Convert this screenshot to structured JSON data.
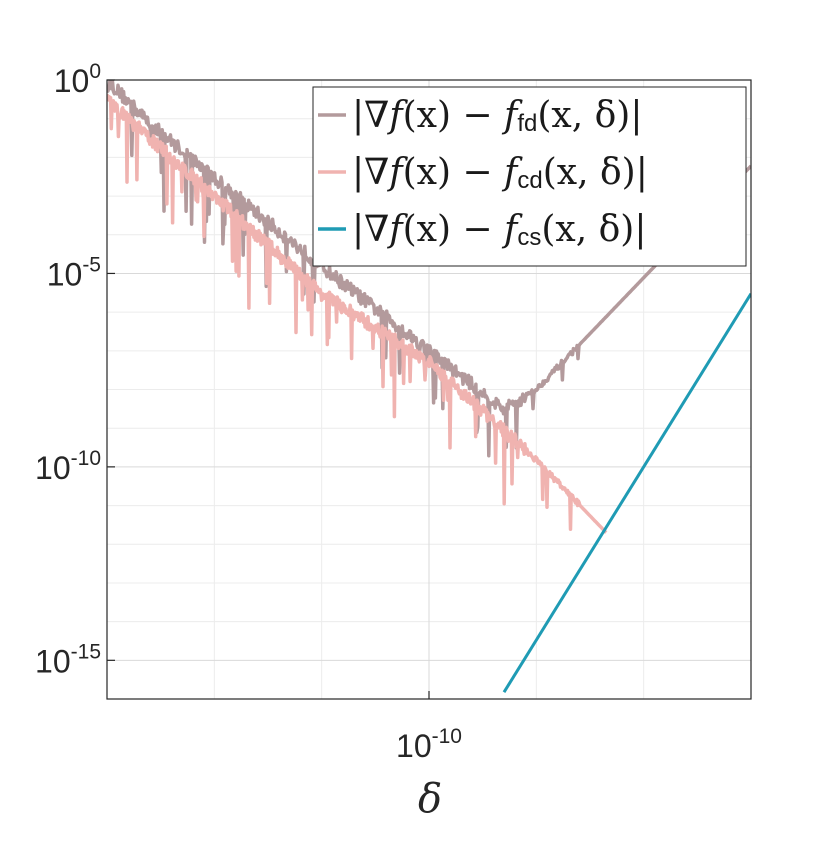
{
  "chart_data": {
    "type": "line",
    "xscale": "log",
    "yscale": "log",
    "xlabel": "δ",
    "ylabel": "",
    "title": "",
    "xlim": [
      1e-16,
      0.0001
    ],
    "ylim": [
      1e-16,
      1
    ],
    "x_ticks": [
      {
        "value": 1e-10,
        "base": "10",
        "exp": "-10"
      }
    ],
    "y_ticks": [
      {
        "value": 1,
        "base": "10",
        "exp": "0"
      },
      {
        "value": 1e-05,
        "base": "10",
        "exp": "-5"
      },
      {
        "value": 1e-10,
        "base": "10",
        "exp": "-10"
      },
      {
        "value": 1e-15,
        "base": "10",
        "exp": "-15"
      }
    ],
    "grid": true,
    "legend_position": "top-right",
    "series": [
      {
        "name": "|∇f(x) − f_fd(x,δ)|",
        "legend": {
          "pre": "|∇",
          "f": "f",
          "mid": "(x) − ",
          "f2": "f",
          "sub": "fd",
          "post": "(x, δ)|"
        },
        "color": "#b39a9c",
        "width": 3.5,
        "noisy": true,
        "points": [
          [
            1e-16,
            1
          ],
          [
            6e-16,
            0.08
          ],
          [
            1e-14,
            0.003
          ],
          [
            1e-12,
            1.5e-05
          ],
          [
            1e-10,
            1e-07
          ],
          [
            2.5e-09,
            3e-09
          ],
          [
            1e-08,
            1e-08
          ],
          [
            0.0001,
            0.006
          ]
        ]
      },
      {
        "name": "|∇f(x) − f_cd(x,δ)|",
        "legend": {
          "pre": "|∇",
          "f": "f",
          "mid": "(x) − ",
          "f2": "f",
          "sub": "cd",
          "post": "(x, δ)|"
        },
        "color": "#f0b3b0",
        "width": 3.5,
        "noisy": true,
        "points": [
          [
            1e-16,
            0.3
          ],
          [
            1e-14,
            0.001
          ],
          [
            1e-12,
            3e-06
          ],
          [
            1e-10,
            5e-08
          ],
          [
            1e-08,
            1.5e-10
          ],
          [
            2e-07,
            2e-12
          ]
        ]
      },
      {
        "name": "|∇f(x) − f_cs(x,δ)|",
        "legend": {
          "pre": "|∇",
          "f": "f",
          "mid": "(x) − ",
          "f2": "f",
          "sub": "cs",
          "post": "(x, δ)|"
        },
        "color": "#1f9bb4",
        "width": 3,
        "noisy": false,
        "points": [
          [
            2.5e-09,
            1.5e-16
          ],
          [
            0.0001,
            3e-06
          ]
        ]
      }
    ]
  }
}
